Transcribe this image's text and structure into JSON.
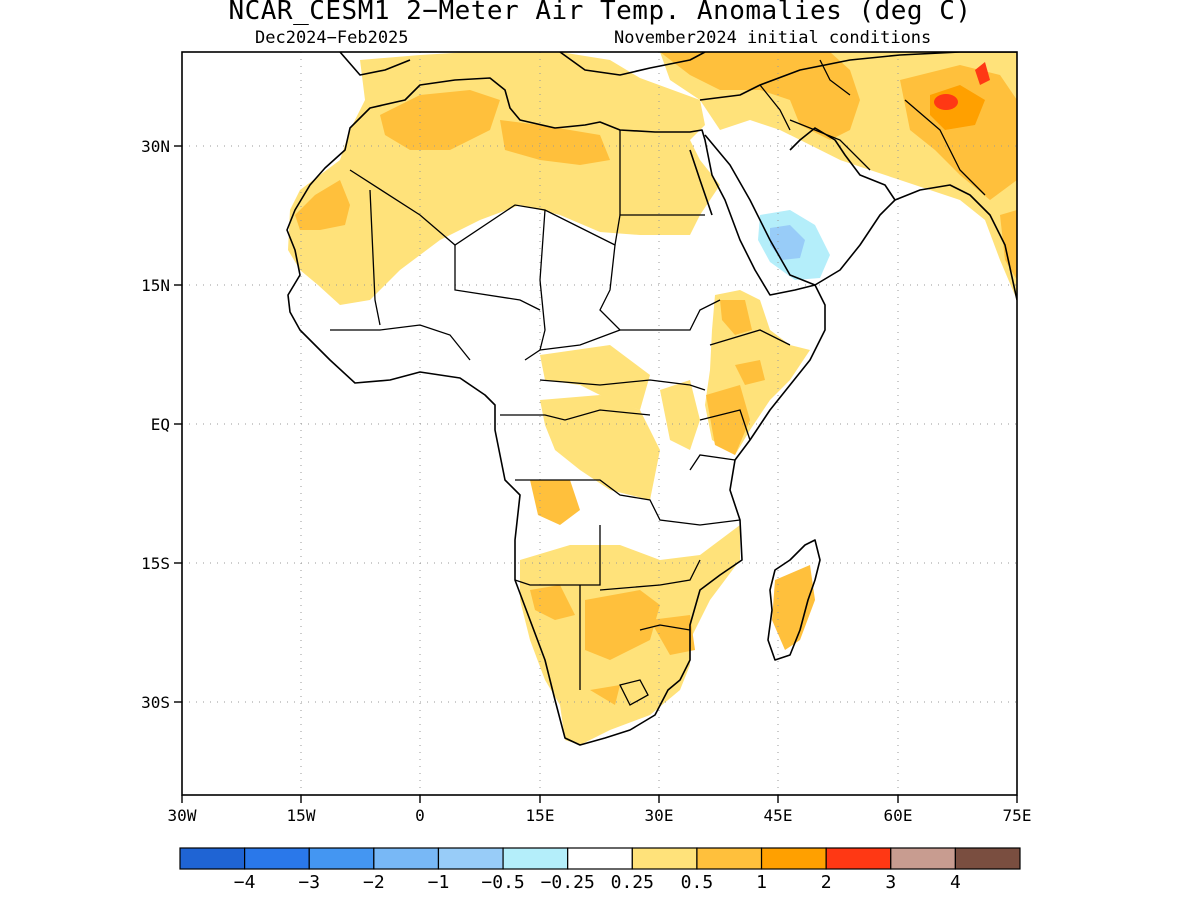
{
  "title": "NCAR_CESM1 2−Meter Air Temp. Anomalies (deg C)",
  "subtitle_left": "Dec2024−Feb2025",
  "subtitle_right": "November2024 initial conditions",
  "lat_ticks": [
    "30N",
    "15N",
    "EQ",
    "15S",
    "30S"
  ],
  "lon_ticks": [
    "30W",
    "15W",
    "0",
    "15E",
    "30E",
    "45E",
    "60E",
    "75E"
  ],
  "colorbar": {
    "colors": [
      "#1f64d4",
      "#2a78ea",
      "#4496f2",
      "#78b8f6",
      "#98ccf8",
      "#b4eefa",
      "#ffffff",
      "#ffe27a",
      "#ffc03c",
      "#ffa000",
      "#ff3814",
      "#c89c90",
      "#7a4e40"
    ],
    "labels": [
      "−4",
      "−3",
      "−2",
      "−1",
      "−0.5",
      "−0.25",
      "0.25",
      "0.5",
      "1",
      "2",
      "3",
      "4"
    ]
  }
}
